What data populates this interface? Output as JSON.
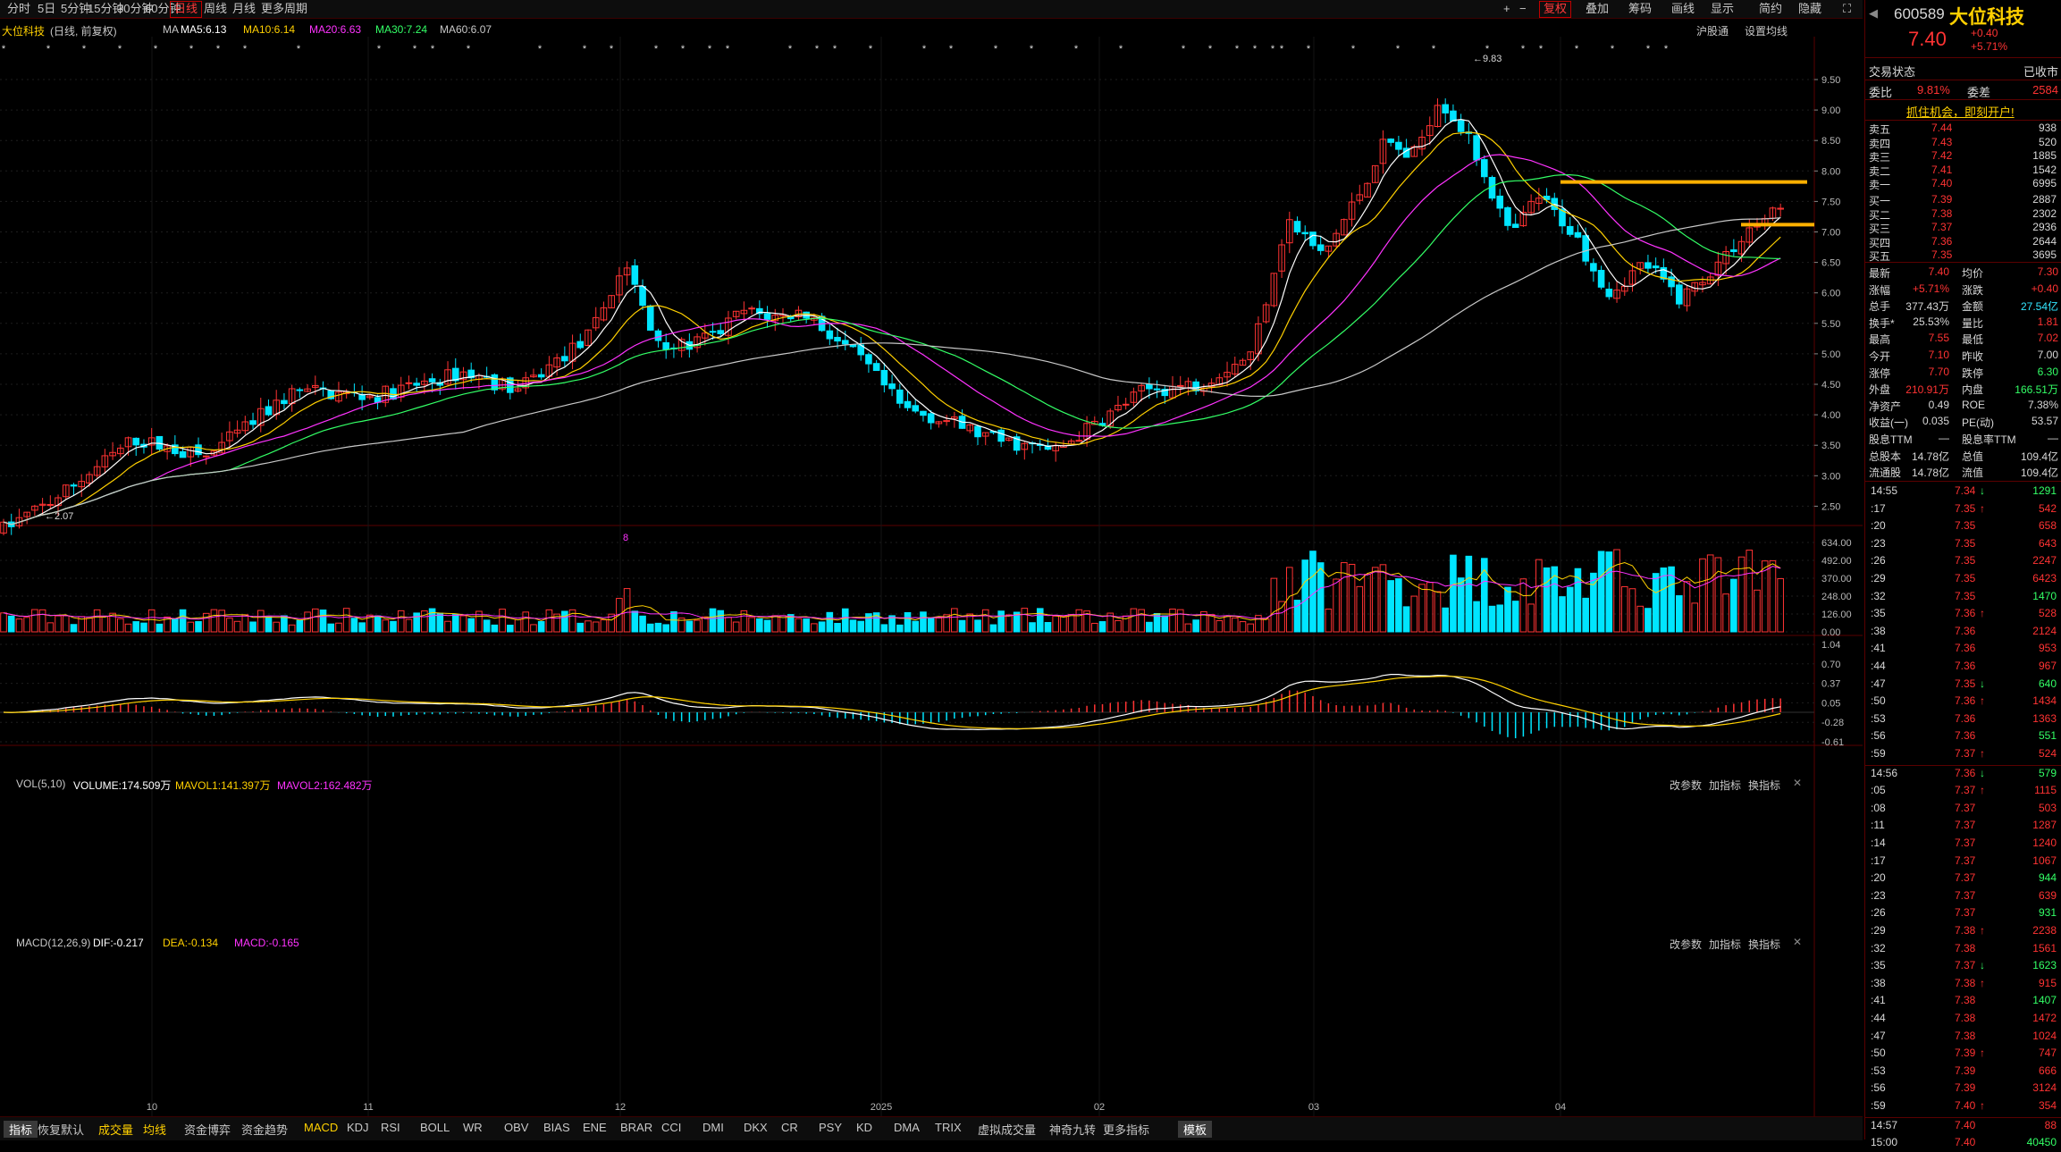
{
  "toolbar": {
    "periods": [
      "分时",
      "5日",
      "5分钟",
      "15分钟",
      "30分钟",
      "60分钟",
      "日线",
      "周线",
      "月线",
      "更多周期"
    ],
    "active_period": "日线",
    "right_items": [
      "+",
      "−",
      "复权",
      "叠加",
      "筹码",
      "画线",
      "显示",
      "简约",
      "隐藏"
    ]
  },
  "chart_header": {
    "stock": "大位科技",
    "mode": "(日线, 前复权)",
    "ma_label": "MA",
    "ma5": "MA5:6.13",
    "ma10": "MA10:6.14",
    "ma20": "MA20:6.63",
    "ma30": "MA30:7.24",
    "ma60": "MA60:6.07",
    "right_link": "沪股通",
    "right_setting": "设置均线"
  },
  "vol_header": {
    "name": "VOL(5,10)",
    "volume": "VOLUME:174.509万",
    "mavol1": "MAVOL1:141.397万",
    "mavol2": "MAVOL2:162.482万",
    "tools": [
      "改参数",
      "加指标",
      "换指标"
    ]
  },
  "macd_header": {
    "name": "MACD(12,26,9)",
    "dif": "DIF:-0.217",
    "dea": "DEA:-0.134",
    "macd": "MACD:-0.165",
    "tools": [
      "改参数",
      "加指标",
      "换指标"
    ]
  },
  "price_axis": [
    "9.50",
    "9.00",
    "8.50",
    "8.00",
    "7.50",
    "7.00",
    "6.50",
    "6.00",
    "5.50",
    "5.00",
    "4.50",
    "4.00",
    "3.50",
    "3.00",
    "2.50"
  ],
  "vol_axis": [
    "634.00",
    "492.00",
    "370.00",
    "248.00",
    "126.00",
    "0.00"
  ],
  "macd_axis": [
    "1.04",
    "0.70",
    "0.37",
    "0.05",
    "-0.28",
    "-0.61"
  ],
  "date_axis": [
    "10",
    "11",
    "12",
    "2025",
    "02",
    "03",
    "04"
  ],
  "annotations": {
    "high": "9.83",
    "low": "2.07",
    "marker": "8"
  },
  "bottom_tabs": [
    "指标",
    "恢复默认",
    "成交量",
    "均线",
    "资金博弈",
    "资金趋势",
    "MACD",
    "KDJ",
    "RSI",
    "BOLL",
    "WR",
    "OBV",
    "BIAS",
    "ENE",
    "BRAR",
    "CCI",
    "DMI",
    "DKX",
    "CR",
    "PSY",
    "KD",
    "DMA",
    "TRIX",
    "虚拟成交量",
    "神奇九转",
    "更多指标",
    "模板"
  ],
  "quote": {
    "code": "600589",
    "name": "大位科技",
    "price": "7.40",
    "change": "+0.40",
    "change_pct": "+5.71%",
    "status_label": "交易状态",
    "status_value": "已收市",
    "weibi_label": "委比",
    "weibi": "9.81%",
    "weicha_label": "委差",
    "weicha": "2584",
    "promo": "抓住机会，即刻开户!",
    "asks": [
      {
        "label": "卖五",
        "price": "7.44",
        "vol": "938"
      },
      {
        "label": "卖四",
        "price": "7.43",
        "vol": "520"
      },
      {
        "label": "卖三",
        "price": "7.42",
        "vol": "1885"
      },
      {
        "label": "卖二",
        "price": "7.41",
        "vol": "1542"
      },
      {
        "label": "卖一",
        "price": "7.40",
        "vol": "6995"
      }
    ],
    "bids": [
      {
        "label": "买一",
        "price": "7.39",
        "vol": "2887"
      },
      {
        "label": "买二",
        "price": "7.38",
        "vol": "2302"
      },
      {
        "label": "买三",
        "price": "7.37",
        "vol": "2936"
      },
      {
        "label": "买四",
        "price": "7.36",
        "vol": "2644"
      },
      {
        "label": "买五",
        "price": "7.35",
        "vol": "3695"
      }
    ],
    "stats": [
      {
        "l1": "最新",
        "v1": "7.40",
        "c1": "up",
        "l2": "均价",
        "v2": "7.30",
        "c2": "up"
      },
      {
        "l1": "涨幅",
        "v1": "+5.71%",
        "c1": "up",
        "l2": "涨跌",
        "v2": "+0.40",
        "c2": "up"
      },
      {
        "l1": "总手",
        "v1": "377.43万",
        "c1": "wh",
        "l2": "金额",
        "v2": "27.54亿",
        "c2": "cy"
      },
      {
        "l1": "换手*",
        "v1": "25.53%",
        "c1": "wh",
        "l2": "量比",
        "v2": "1.81",
        "c2": "up"
      },
      {
        "l1": "最高",
        "v1": "7.55",
        "c1": "up",
        "l2": "最低",
        "v2": "7.02",
        "c2": "up"
      },
      {
        "l1": "今开",
        "v1": "7.10",
        "c1": "up",
        "l2": "昨收",
        "v2": "7.00",
        "c2": "wh"
      },
      {
        "l1": "涨停",
        "v1": "7.70",
        "c1": "up",
        "l2": "跌停",
        "v2": "6.30",
        "c2": "dn"
      },
      {
        "l1": "外盘",
        "v1": "210.91万",
        "c1": "up",
        "l2": "内盘",
        "v2": "166.51万",
        "c2": "dn"
      },
      {
        "l1": "净资产",
        "v1": "0.49",
        "c1": "wh",
        "l2": "ROE",
        "v2": "7.38%",
        "c2": "wh"
      },
      {
        "l1": "收益(一)",
        "v1": "0.035",
        "c1": "wh",
        "l2": "PE(动)",
        "v2": "53.57",
        "c2": "wh"
      },
      {
        "l1": "股息TTM",
        "v1": "—",
        "c1": "wh",
        "l2": "股息率TTM",
        "v2": "—",
        "c2": "wh"
      },
      {
        "l1": "总股本",
        "v1": "14.78亿",
        "c1": "wh",
        "l2": "总值",
        "v2": "109.4亿",
        "c2": "wh"
      },
      {
        "l1": "流通股",
        "v1": "14.78亿",
        "c1": "wh",
        "l2": "流值",
        "v2": "109.4亿",
        "c2": "wh"
      }
    ],
    "ticks": [
      {
        "t": "14:55",
        "p": "7.34",
        "a": "dn",
        "v": "1291",
        "vc": "dn"
      },
      {
        "t": ":17",
        "p": "7.35",
        "a": "up",
        "v": "542",
        "vc": "up"
      },
      {
        "t": ":20",
        "p": "7.35",
        "a": "",
        "v": "658",
        "vc": "up"
      },
      {
        "t": ":23",
        "p": "7.35",
        "a": "",
        "v": "643",
        "vc": "up"
      },
      {
        "t": ":26",
        "p": "7.35",
        "a": "",
        "v": "2247",
        "vc": "up"
      },
      {
        "t": ":29",
        "p": "7.35",
        "a": "",
        "v": "6423",
        "vc": "up"
      },
      {
        "t": ":32",
        "p": "7.35",
        "a": "",
        "v": "1470",
        "vc": "dn"
      },
      {
        "t": ":35",
        "p": "7.36",
        "a": "up",
        "v": "528",
        "vc": "up"
      },
      {
        "t": ":38",
        "p": "7.36",
        "a": "",
        "v": "2124",
        "vc": "up"
      },
      {
        "t": ":41",
        "p": "7.36",
        "a": "",
        "v": "953",
        "vc": "up"
      },
      {
        "t": ":44",
        "p": "7.36",
        "a": "",
        "v": "967",
        "vc": "up"
      },
      {
        "t": ":47",
        "p": "7.35",
        "a": "dn",
        "v": "640",
        "vc": "dn"
      },
      {
        "t": ":50",
        "p": "7.36",
        "a": "up",
        "v": "1434",
        "vc": "up"
      },
      {
        "t": ":53",
        "p": "7.36",
        "a": "",
        "v": "1363",
        "vc": "up"
      },
      {
        "t": ":56",
        "p": "7.36",
        "a": "",
        "v": "551",
        "vc": "dn"
      },
      {
        "t": ":59",
        "p": "7.37",
        "a": "up",
        "v": "524",
        "vc": "up"
      },
      {
        "t": "14:56",
        "p": "7.36",
        "a": "dn",
        "v": "579",
        "vc": "dn"
      },
      {
        "t": ":05",
        "p": "7.37",
        "a": "up",
        "v": "1115",
        "vc": "up"
      },
      {
        "t": ":08",
        "p": "7.37",
        "a": "",
        "v": "503",
        "vc": "up"
      },
      {
        "t": ":11",
        "p": "7.37",
        "a": "",
        "v": "1287",
        "vc": "up"
      },
      {
        "t": ":14",
        "p": "7.37",
        "a": "",
        "v": "1240",
        "vc": "up"
      },
      {
        "t": ":17",
        "p": "7.37",
        "a": "",
        "v": "1067",
        "vc": "up"
      },
      {
        "t": ":20",
        "p": "7.37",
        "a": "",
        "v": "944",
        "vc": "dn"
      },
      {
        "t": ":23",
        "p": "7.37",
        "a": "",
        "v": "639",
        "vc": "up"
      },
      {
        "t": ":26",
        "p": "7.37",
        "a": "",
        "v": "931",
        "vc": "dn"
      },
      {
        "t": ":29",
        "p": "7.38",
        "a": "up",
        "v": "2238",
        "vc": "up"
      },
      {
        "t": ":32",
        "p": "7.38",
        "a": "",
        "v": "1561",
        "vc": "up"
      },
      {
        "t": ":35",
        "p": "7.37",
        "a": "dn",
        "v": "1623",
        "vc": "dn"
      },
      {
        "t": ":38",
        "p": "7.38",
        "a": "up",
        "v": "915",
        "vc": "up"
      },
      {
        "t": ":41",
        "p": "7.38",
        "a": "",
        "v": "1407",
        "vc": "dn"
      },
      {
        "t": ":44",
        "p": "7.38",
        "a": "",
        "v": "1472",
        "vc": "up"
      },
      {
        "t": ":47",
        "p": "7.38",
        "a": "",
        "v": "1024",
        "vc": "up"
      },
      {
        "t": ":50",
        "p": "7.39",
        "a": "up",
        "v": "747",
        "vc": "up"
      },
      {
        "t": ":53",
        "p": "7.39",
        "a": "",
        "v": "666",
        "vc": "up"
      },
      {
        "t": ":56",
        "p": "7.39",
        "a": "",
        "v": "3124",
        "vc": "up"
      },
      {
        "t": ":59",
        "p": "7.40",
        "a": "up",
        "v": "354",
        "vc": "up"
      },
      {
        "t": "14:57",
        "p": "7.40",
        "a": "",
        "v": "88",
        "vc": "up"
      },
      {
        "t": "15:00",
        "p": "7.40",
        "a": "",
        "v": "40450",
        "vc": "dn"
      }
    ]
  },
  "colors": {
    "up": "#ff3333",
    "down": "#00e5ff",
    "ma5": "#ffffff",
    "ma10": "#ffd000",
    "ma20": "#ff33ff",
    "ma30": "#33ff66",
    "ma60": "#c8c8c8",
    "resistance": "#ffb000"
  }
}
